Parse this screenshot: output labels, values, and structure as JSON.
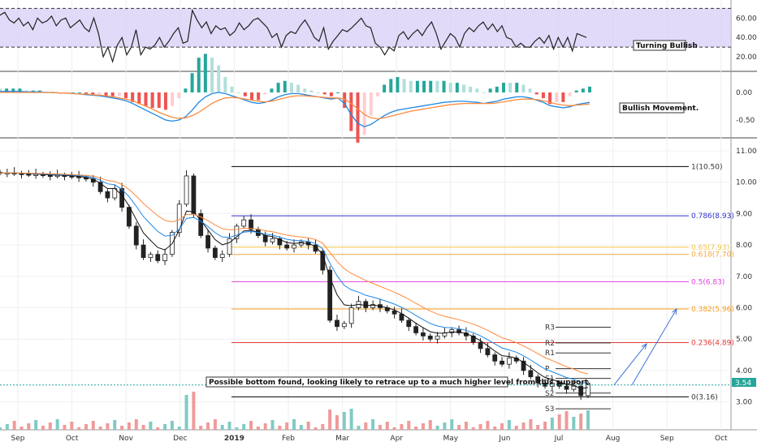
{
  "chart_data": [
    {
      "type": "line",
      "panel": "rsi",
      "yticks": [
        20,
        40,
        60
      ],
      "band": [
        30,
        70
      ],
      "series": [
        {
          "values": [
            63,
            66,
            58,
            55,
            60,
            52,
            56,
            48,
            60,
            55,
            57,
            62,
            52,
            58,
            60,
            50,
            54,
            58,
            50,
            46,
            60,
            44,
            20,
            30,
            15,
            32,
            40,
            22,
            30,
            48,
            22,
            30,
            28,
            32,
            40,
            30,
            36,
            44,
            50,
            34,
            36,
            68,
            58,
            50,
            56,
            44,
            52,
            48,
            50,
            42,
            46,
            55,
            48,
            52,
            58,
            60,
            55,
            50,
            40,
            44,
            30,
            42,
            46,
            44,
            52,
            58,
            50,
            40,
            36,
            50,
            28,
            36,
            42,
            48,
            46,
            50,
            55,
            60,
            52,
            50,
            34,
            30,
            22,
            30,
            26,
            42,
            46,
            38,
            44,
            48,
            42,
            50,
            56,
            44,
            28,
            36,
            44,
            40,
            30,
            44,
            50,
            46,
            52,
            56,
            48,
            54,
            46,
            52,
            40,
            38,
            30,
            34,
            30,
            30,
            36,
            40,
            34,
            42,
            28,
            40,
            30,
            40,
            26,
            44,
            42,
            40
          ]
        }
      ],
      "annotations": [
        "Turning Bullish"
      ]
    },
    {
      "type": "bar",
      "panel": "macd",
      "yticks": [
        0.0,
        -0.5
      ],
      "tick_labels": [
        "0.00",
        "-0.50"
      ],
      "macd": [
        0.02,
        0.02,
        0.02,
        0.02,
        0.01,
        0.01,
        0.01,
        0.0,
        0.0,
        -0.01,
        -0.01,
        -0.02,
        -0.03,
        -0.04,
        -0.05,
        -0.06,
        -0.08,
        -0.1,
        -0.12,
        -0.15,
        -0.2,
        -0.26,
        -0.32,
        -0.38,
        -0.44,
        -0.5,
        -0.52,
        -0.5,
        -0.44,
        -0.32,
        -0.18,
        -0.08,
        -0.02,
        0.0,
        -0.02,
        -0.06,
        -0.1,
        -0.14,
        -0.18,
        -0.2,
        -0.18,
        -0.14,
        -0.08,
        -0.04,
        -0.02,
        -0.02,
        -0.04,
        -0.06,
        -0.08,
        -0.1,
        -0.12,
        -0.1,
        -0.2,
        -0.4,
        -0.56,
        -0.62,
        -0.58,
        -0.5,
        -0.42,
        -0.36,
        -0.32,
        -0.3,
        -0.28,
        -0.26,
        -0.24,
        -0.22,
        -0.2,
        -0.18,
        -0.17,
        -0.16,
        -0.16,
        -0.17,
        -0.18,
        -0.2,
        -0.18,
        -0.16,
        -0.12,
        -0.1,
        -0.08,
        -0.08,
        -0.1,
        -0.14,
        -0.18,
        -0.24,
        -0.26,
        -0.28,
        -0.26,
        -0.22,
        -0.2,
        -0.18
      ],
      "signal": [
        0.0,
        0.0,
        0.0,
        0.0,
        0.0,
        0.0,
        0.0,
        0.0,
        0.0,
        -0.01,
        -0.01,
        -0.02,
        -0.03,
        -0.03,
        -0.04,
        -0.05,
        -0.06,
        -0.08,
        -0.1,
        -0.12,
        -0.15,
        -0.2,
        -0.25,
        -0.3,
        -0.36,
        -0.41,
        -0.45,
        -0.47,
        -0.46,
        -0.42,
        -0.36,
        -0.28,
        -0.2,
        -0.14,
        -0.1,
        -0.09,
        -0.1,
        -0.12,
        -0.14,
        -0.16,
        -0.17,
        -0.16,
        -0.13,
        -0.1,
        -0.07,
        -0.06,
        -0.06,
        -0.07,
        -0.08,
        -0.09,
        -0.1,
        -0.1,
        -0.12,
        -0.2,
        -0.3,
        -0.4,
        -0.46,
        -0.48,
        -0.46,
        -0.43,
        -0.4,
        -0.37,
        -0.34,
        -0.32,
        -0.3,
        -0.28,
        -0.26,
        -0.24,
        -0.22,
        -0.21,
        -0.2,
        -0.2,
        -0.2,
        -0.2,
        -0.2,
        -0.19,
        -0.17,
        -0.15,
        -0.13,
        -0.12,
        -0.12,
        -0.13,
        -0.15,
        -0.18,
        -0.21,
        -0.23,
        -0.24,
        -0.23,
        -0.22,
        -0.21
      ],
      "annotations": [
        "Bullish Movement."
      ]
    },
    {
      "type": "line",
      "panel": "price",
      "ylim": [
        2.5,
        11.2
      ],
      "yticks": [
        3.0,
        4.0,
        5.0,
        6.0,
        7.0,
        8.0,
        9.0,
        10.0,
        11.0
      ],
      "tick_labels": [
        "3.00",
        "4.00",
        "5.00",
        "6.00",
        "7.00",
        "8.00",
        "9.00",
        "10.00",
        "11.00"
      ],
      "x_tick_labels": [
        "Sep",
        "Oct",
        "Nov",
        "Dec",
        "2019",
        "Feb",
        "Mar",
        "Apr",
        "May",
        "Jun",
        "Jul",
        "Aug",
        "Sep",
        "Oct"
      ],
      "series": [
        {
          "values": [
            10.3,
            10.3,
            10.28,
            10.26,
            10.25,
            10.25,
            10.22,
            10.2,
            10.22,
            10.2,
            10.18,
            10.15,
            10.1,
            10.0,
            9.7,
            9.5,
            9.8,
            9.2,
            8.6,
            8.0,
            7.6,
            7.7,
            7.5,
            7.7,
            8.4,
            9.3,
            10.2,
            9.0,
            8.3,
            7.9,
            7.6,
            7.7,
            8.2,
            8.6,
            8.8,
            8.5,
            8.3,
            8.1,
            8.2,
            8.0,
            7.9,
            8.0,
            8.1,
            8.0,
            7.8,
            7.2,
            5.6,
            5.4,
            5.5,
            6.0,
            6.2,
            6.0,
            6.1,
            6.0,
            5.9,
            5.8,
            5.6,
            5.4,
            5.2,
            5.1,
            5.0,
            5.1,
            5.2,
            5.3,
            5.2,
            5.1,
            4.9,
            4.7,
            4.5,
            4.3,
            4.2,
            4.4,
            4.3,
            4.0,
            3.8,
            3.6,
            3.5,
            3.6,
            3.5,
            3.4,
            3.5,
            3.2,
            3.54
          ]
        }
      ],
      "fib_levels": [
        {
          "label": "1(10.50)",
          "value": 10.5,
          "color": "#000000"
        },
        {
          "label": "0.786(8.93)",
          "value": 8.93,
          "color": "#3333cc"
        },
        {
          "label": "0.65(7.93)",
          "value": 7.93,
          "color": "#f4c542"
        },
        {
          "label": "0.618(7.70)",
          "value": 7.7,
          "color": "#f4a742"
        },
        {
          "label": "0.5(6.83)",
          "value": 6.83,
          "color": "#e040e0"
        },
        {
          "label": "0.382(5.96)",
          "value": 5.96,
          "color": "#f59b1a"
        },
        {
          "label": "0.236(4.89)",
          "value": 4.89,
          "color": "#e53935"
        },
        {
          "label": "0(3.16)",
          "value": 3.16,
          "color": "#000000"
        }
      ],
      "pivot_levels": [
        {
          "label": "R3",
          "value": 5.38
        },
        {
          "label": "R2",
          "value": 4.88
        },
        {
          "label": "R1",
          "value": 4.56
        },
        {
          "label": "P",
          "value": 4.06
        },
        {
          "label": "S1",
          "value": 3.75
        },
        {
          "label": "S2",
          "value": 3.28
        },
        {
          "label": "S3",
          "value": 2.78
        }
      ],
      "last_price": "3.54",
      "annotations": [
        "Possible bottom found, looking likely to retrace up to a much higher level from this support."
      ],
      "colors": {
        "up": "#26a69a",
        "down": "#ef5350",
        "ema_fast": "#1e88e5",
        "ema_slow": "#ff8a3d",
        "rsi_band": "#d7cdf5",
        "last": "#26a69a"
      }
    }
  ],
  "labels": {
    "rsi_note": "Turning Bullish",
    "macd_note": "Bullish Movement.",
    "price_note": "Possible bottom found, looking likely to retrace up to a much higher level from this support.",
    "last_price": "3.54"
  }
}
